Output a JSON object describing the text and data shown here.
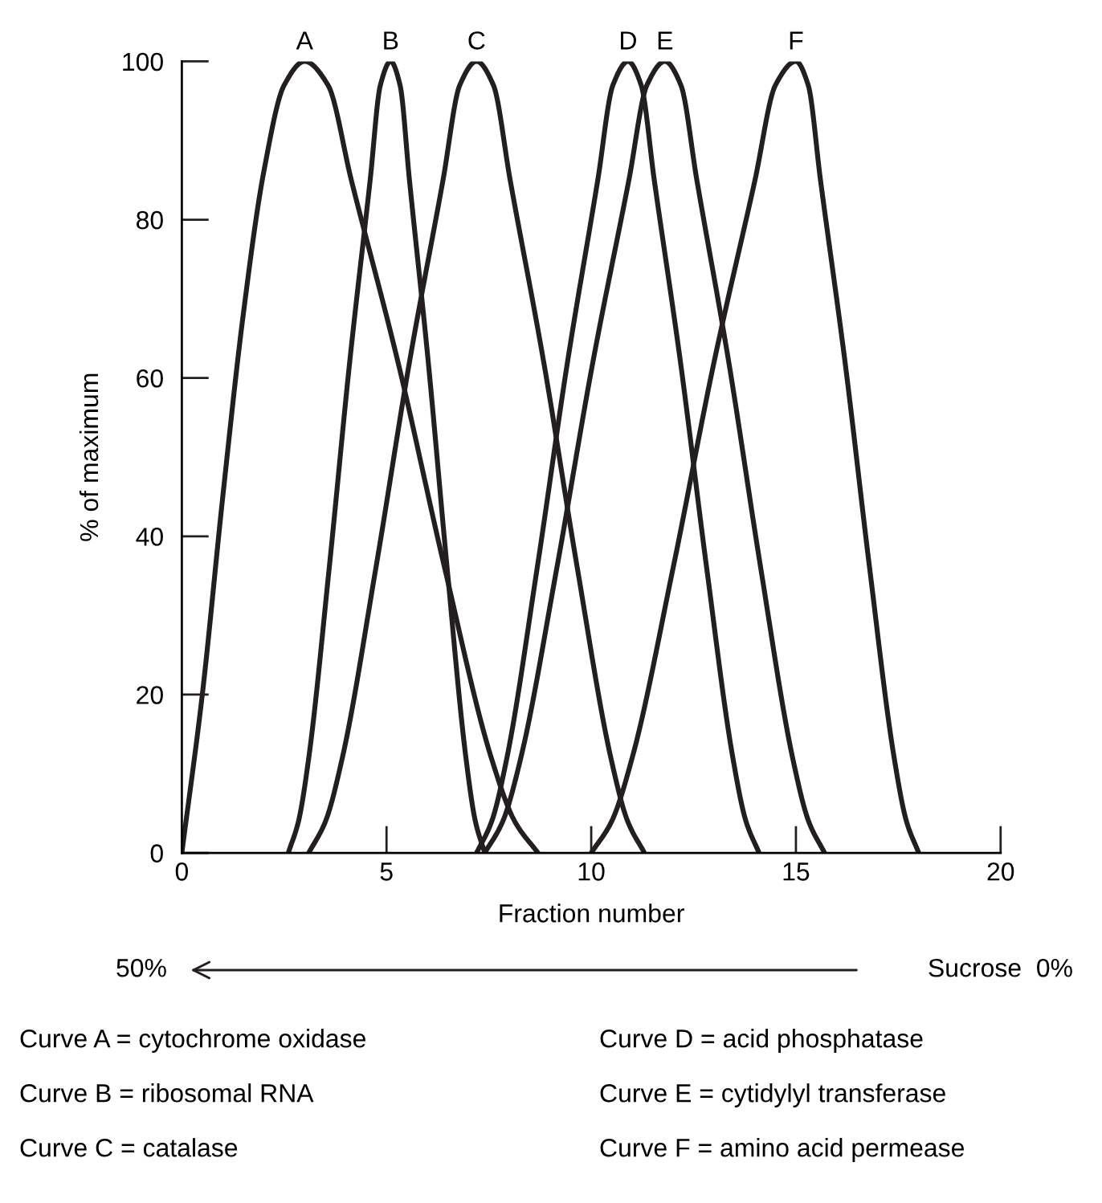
{
  "chart_data": {
    "type": "line",
    "xlabel": "Fraction number",
    "ylabel": "% of maximum",
    "xlim": [
      0,
      20
    ],
    "xticks": [
      0,
      5,
      10,
      15,
      20
    ],
    "ylim": [
      0,
      100
    ],
    "yticks": [
      0,
      20,
      40,
      60,
      80,
      100
    ],
    "grid": false,
    "legend": false,
    "marker": "none",
    "line_style": "solid",
    "series": [
      {
        "color": "#231f20",
        "x": [
          0,
          0.5,
          1.0,
          1.5,
          2.0,
          2.5,
          3,
          3.57,
          4.14,
          5.28,
          6.42,
          7.56,
          8.13,
          8.7
        ],
        "values": [
          0,
          20,
          45,
          68,
          86,
          97,
          100,
          97,
          85,
          62,
          36,
          12,
          4,
          0
        ]
      },
      {
        "color": "#231f20",
        "x": [
          2.6,
          2.85,
          3.1,
          3.6,
          4.1,
          4.6,
          4.85,
          5.1,
          5.33,
          5.56,
          6.02,
          6.48,
          6.94,
          7.17,
          7.4
        ],
        "values": [
          0,
          4,
          12,
          36,
          62,
          85,
          97,
          100,
          97,
          85,
          62,
          36,
          12,
          4,
          0
        ]
      },
      {
        "color": "#231f20",
        "x": [
          3.1,
          3.51,
          3.92,
          4.74,
          5.56,
          6.38,
          6.79,
          7.2,
          7.61,
          8.02,
          8.84,
          9.66,
          10.48,
          10.89,
          11.3
        ],
        "values": [
          0,
          4,
          12,
          36,
          62,
          85,
          97,
          100,
          97,
          85,
          62,
          36,
          12,
          4,
          0
        ]
      },
      {
        "color": "#231f20",
        "x": [
          7.2,
          7.57,
          7.94,
          8.68,
          9.42,
          10.16,
          10.53,
          10.9,
          11.22,
          11.54,
          12.18,
          12.82,
          13.46,
          13.78,
          14.1
        ],
        "values": [
          0,
          4,
          12,
          36,
          62,
          85,
          97,
          100,
          97,
          85,
          62,
          36,
          12,
          4,
          0
        ]
      },
      {
        "color": "#231f20",
        "x": [
          7.4,
          7.84,
          8.28,
          9.16,
          10.04,
          10.92,
          11.36,
          11.8,
          12.19,
          12.58,
          13.36,
          14.14,
          14.92,
          15.31,
          15.7
        ],
        "values": [
          0,
          4,
          12,
          36,
          62,
          85,
          97,
          100,
          97,
          85,
          62,
          36,
          12,
          4,
          0
        ]
      },
      {
        "color": "#231f20",
        "x": [
          10,
          10.5,
          11,
          12,
          13,
          14,
          14.5,
          15,
          15.3,
          15.6,
          16.2,
          16.8,
          17.4,
          17.7,
          18
        ],
        "values": [
          0,
          4,
          12,
          36,
          62,
          85,
          97,
          100,
          97,
          85,
          62,
          36,
          12,
          4,
          0
        ]
      }
    ],
    "annotations": [
      {
        "text": "A",
        "x": 3,
        "y": 100
      },
      {
        "text": "B",
        "x": 5.1,
        "y": 100
      },
      {
        "text": "C",
        "x": 7.2,
        "y": 100
      },
      {
        "text": "D",
        "x": 10.9,
        "y": 100
      },
      {
        "text": "E",
        "x": 11.8,
        "y": 100
      },
      {
        "text": "F",
        "x": 15,
        "y": 100
      },
      "50%",
      "Sucrose  0%",
      "Curve A = cytochrome oxidase",
      "Curve B = ribosomal RNA",
      "Curve C = catalase",
      "Curve D = acid phosphatase",
      "Curve E = cytidylyl transferase",
      "Curve F = amino acid permease"
    ]
  }
}
